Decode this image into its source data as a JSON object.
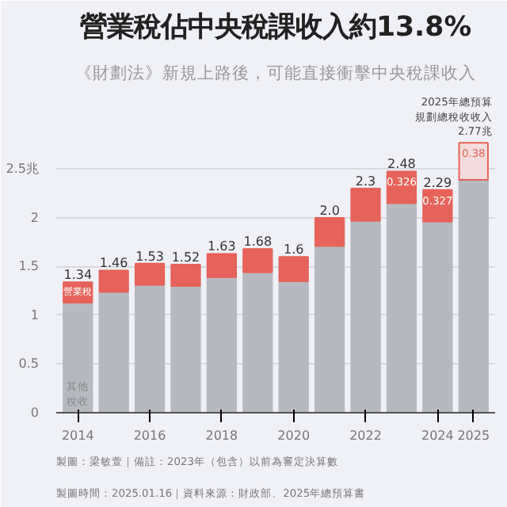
{
  "chart_data": {
    "type": "bar",
    "stacked": true,
    "title": "營業稅佔中央稅課收入約13.8%",
    "subtitle": "《財劃法》新規上路後，可能直接衝擊中央稅課收入",
    "categories": [
      "2014",
      null,
      "2016",
      null,
      "2018",
      null,
      "2020",
      null,
      "2022",
      null,
      "2024",
      "2025"
    ],
    "series": [
      {
        "name": "其他稅收",
        "color": "#b7b9c0",
        "values": [
          1.13,
          1.24,
          1.31,
          1.3,
          1.39,
          1.44,
          1.35,
          1.71,
          1.97,
          2.15,
          1.96,
          2.39
        ]
      },
      {
        "name": "營業稅",
        "color": "#e5635a",
        "colors": [
          "#e5635a",
          "#e5635a",
          "#e5635a",
          "#e5635a",
          "#e5635a",
          "#e5635a",
          "#e5635a",
          "#e5635a",
          "#e5635a",
          "#e5635a",
          "#e5635a",
          "#f4dcdc"
        ],
        "values": [
          0.21,
          0.22,
          0.22,
          0.22,
          0.24,
          0.24,
          0.25,
          0.29,
          0.33,
          0.326,
          0.327,
          0.38
        ],
        "value_labels": [
          null,
          null,
          null,
          null,
          null,
          null,
          null,
          null,
          null,
          "0.326",
          "0.327",
          "0.38"
        ]
      }
    ],
    "totals": [
      "1.34",
      "1.46",
      "1.53",
      "1.52",
      "1.63",
      "1.68",
      "1.6",
      "2.0",
      "2.3",
      "2.48",
      "2.29",
      null
    ],
    "ylim": [
      0,
      3.3
    ],
    "yticks": [
      0,
      0.5,
      1,
      1.5,
      2,
      {
        "value": 2.5,
        "label": "2.5兆"
      }
    ],
    "grid": "y",
    "annotations": [
      {
        "text": "2025年總預算規劃總稅收收入",
        "x": "2025",
        "y": 2.77
      },
      {
        "text": "2.77兆",
        "x": "2025",
        "y": 2.77
      },
      "製圖：梁敏萱｜備註：2023年（包含）以前為審定決算數",
      "製圖時間：2025.01.16｜資料來源：財政部、2025年總預算書"
    ]
  }
}
